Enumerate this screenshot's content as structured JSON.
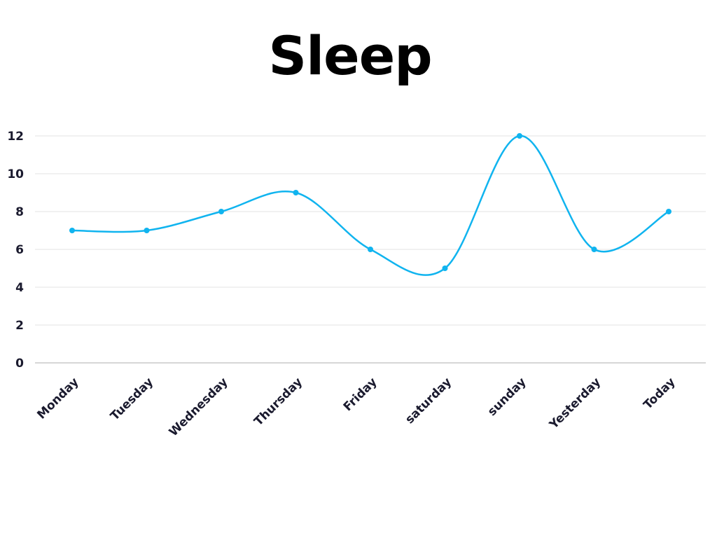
{
  "chart_data": {
    "type": "line",
    "title": "Sleep",
    "xlabel": "",
    "ylabel": "",
    "categories": [
      "Monday",
      "Tuesday",
      "Wednesday",
      "Thursday",
      "Friday",
      "saturday",
      "sunday",
      "Yesterday",
      "Today"
    ],
    "series": [
      {
        "values": [
          7,
          7,
          8,
          9,
          6,
          5,
          12,
          6,
          8
        ]
      }
    ],
    "ylim": [
      0,
      12
    ],
    "yticks": [
      0,
      2,
      4,
      6,
      8,
      10,
      12
    ],
    "grid": true,
    "smooth": true,
    "legend": "none",
    "colors": {
      "line": "#10b4ef",
      "grid": "#e3e3e3",
      "axis": "#c8c8c8",
      "text": "#1a1a2e"
    }
  }
}
